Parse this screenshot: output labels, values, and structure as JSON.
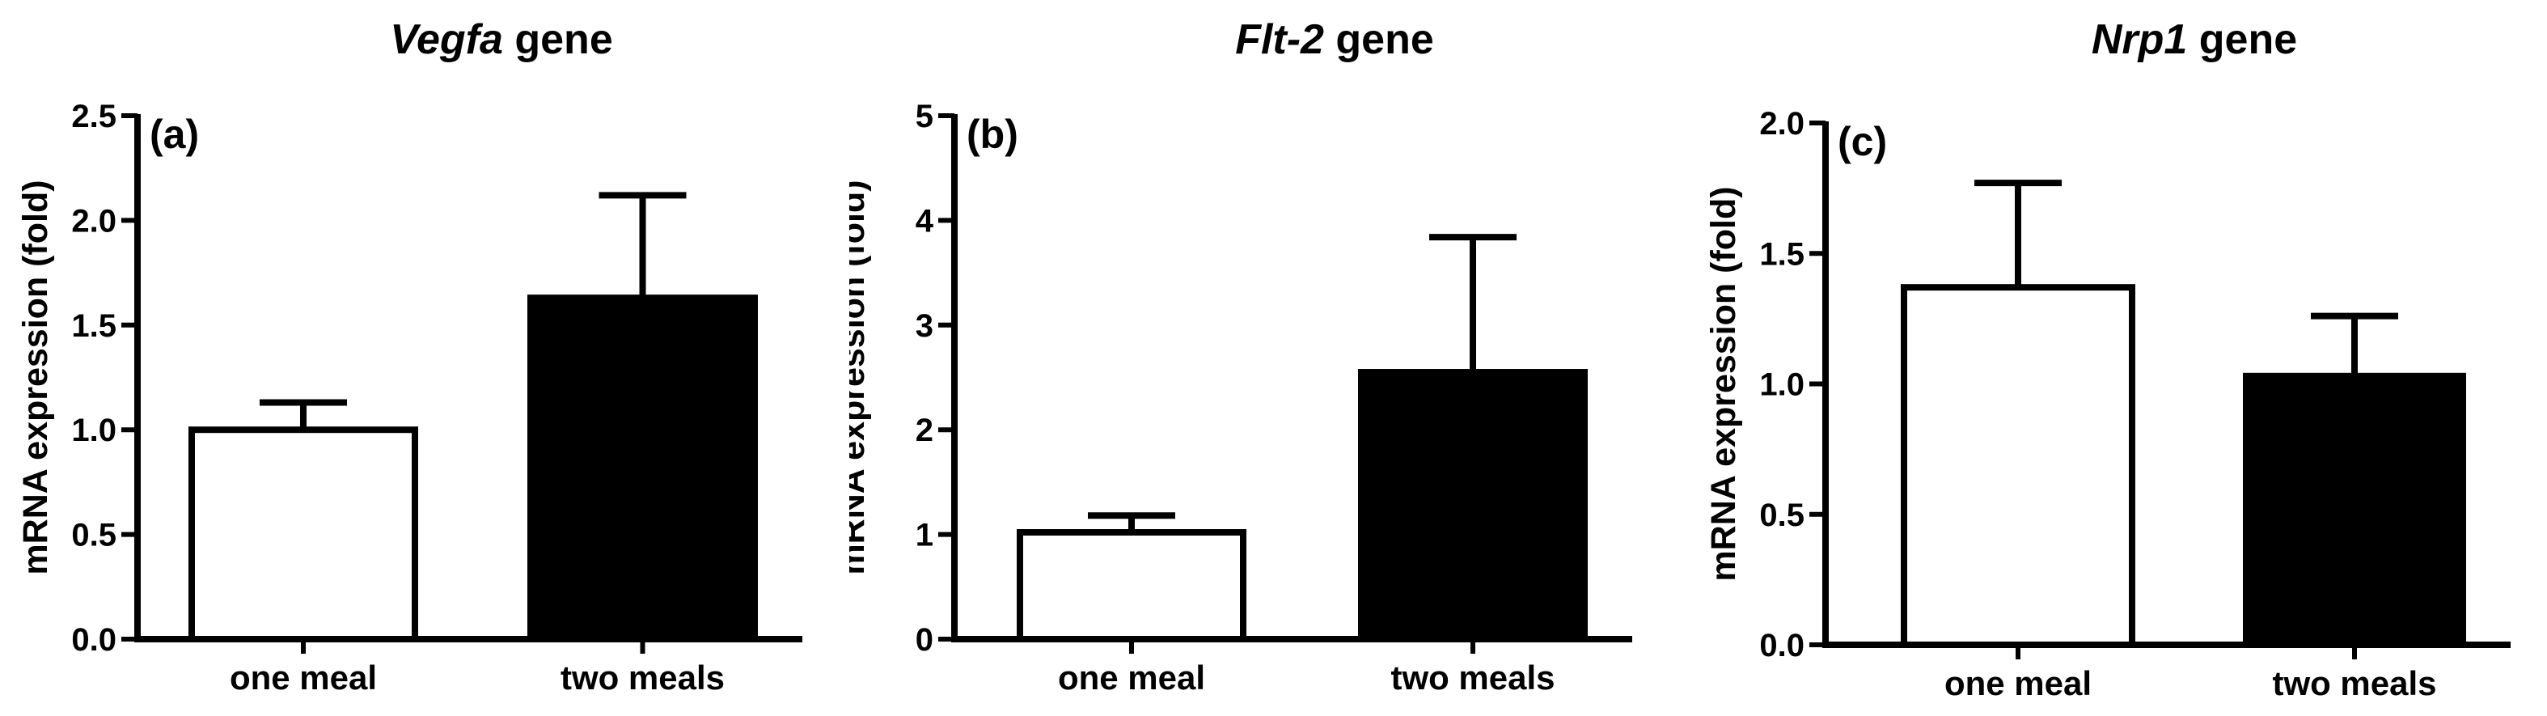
{
  "chart_data": [
    {
      "type": "bar",
      "panel_label": "(a)",
      "title_gene": "Vegfa",
      "title_suffix": " gene",
      "ylabel": "mRNA expression (fold)",
      "categories": [
        "one meal",
        "two meals"
      ],
      "values": [
        1.0,
        1.63
      ],
      "errors": [
        0.13,
        0.49
      ],
      "bar_fill": [
        "#ffffff",
        "#000000"
      ],
      "ylim": [
        0,
        2.5
      ],
      "yticks": [
        0.0,
        0.5,
        1.0,
        1.5,
        2.0,
        2.5
      ],
      "ytick_labels": [
        "0.0",
        "0.5",
        "1.0",
        "1.5",
        "2.0",
        "2.5"
      ]
    },
    {
      "type": "bar",
      "panel_label": "(b)",
      "title_gene": "Flt-2",
      "title_suffix": " gene",
      "ylabel": "mRNA expression (fold)",
      "categories": [
        "one meal",
        "two meals"
      ],
      "values": [
        1.02,
        2.55
      ],
      "errors": [
        0.16,
        1.29
      ],
      "bar_fill": [
        "#ffffff",
        "#000000"
      ],
      "ylim": [
        0,
        5
      ],
      "yticks": [
        0,
        1,
        2,
        3,
        4,
        5
      ],
      "ytick_labels": [
        "0",
        "1",
        "2",
        "3",
        "4",
        "5"
      ]
    },
    {
      "type": "bar",
      "panel_label": "(c)",
      "title_gene": "Nrp1",
      "title_suffix": " gene",
      "ylabel": "mRNA expression (fold)",
      "categories": [
        "one meal",
        "two meals"
      ],
      "values": [
        1.37,
        1.03
      ],
      "errors": [
        0.4,
        0.23
      ],
      "bar_fill": [
        "#ffffff",
        "#000000"
      ],
      "ylim": [
        0,
        2.0
      ],
      "yticks": [
        0.0,
        0.5,
        1.0,
        1.5,
        2.0
      ],
      "ytick_labels": [
        "0.0",
        "0.5",
        "1.0",
        "1.5",
        "2.0"
      ]
    }
  ]
}
